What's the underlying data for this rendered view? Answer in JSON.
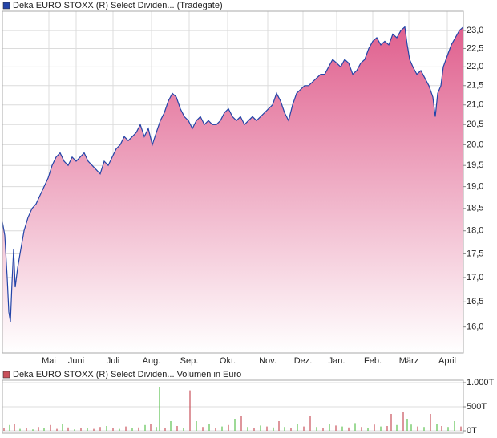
{
  "chart_data": [
    {
      "type": "area",
      "log_scale": true,
      "grid": true,
      "series": [
        {
          "name": "Deka EURO STOXX (R) Select Dividen... (Tradegate)",
          "color": "#2344a8",
          "fill": "#e0608e",
          "x": [
            0,
            3,
            6,
            8,
            10,
            12,
            14,
            16,
            19,
            22,
            27,
            32,
            37,
            42,
            47,
            52,
            57,
            62,
            67,
            72,
            77,
            82,
            87,
            92,
            97,
            102,
            107,
            112,
            117,
            122,
            127,
            132,
            137,
            142,
            147,
            152,
            157,
            162,
            167,
            172,
            177,
            182,
            187,
            192,
            197,
            202,
            207,
            212,
            217,
            222,
            227,
            232,
            237,
            242,
            247,
            252,
            257,
            262,
            267,
            272,
            277,
            282,
            287,
            292,
            297,
            302,
            307,
            312,
            317,
            322,
            327,
            332,
            337,
            342,
            347,
            352,
            357,
            362,
            367,
            372,
            377,
            382,
            387,
            392,
            397,
            402,
            407,
            412,
            417,
            422,
            427,
            432,
            437,
            442,
            447,
            452,
            457,
            462,
            467,
            472,
            477,
            482,
            487,
            492,
            497,
            502,
            505,
            508,
            512,
            517,
            522,
            527,
            532,
            537,
            540,
            543,
            547,
            550,
            555,
            560,
            565,
            570,
            575
          ],
          "values": [
            18.2,
            17.9,
            17.0,
            16.3,
            16.1,
            16.9,
            17.6,
            16.8,
            17.2,
            17.5,
            18.0,
            18.3,
            18.5,
            18.6,
            18.8,
            19.0,
            19.2,
            19.5,
            19.7,
            19.8,
            19.6,
            19.5,
            19.7,
            19.6,
            19.7,
            19.8,
            19.6,
            19.5,
            19.4,
            19.3,
            19.6,
            19.5,
            19.7,
            19.9,
            20.0,
            20.2,
            20.1,
            20.2,
            20.3,
            20.5,
            20.2,
            20.4,
            20.0,
            20.3,
            20.6,
            20.8,
            21.1,
            21.3,
            21.2,
            20.9,
            20.7,
            20.6,
            20.4,
            20.6,
            20.7,
            20.5,
            20.6,
            20.5,
            20.5,
            20.6,
            20.8,
            20.9,
            20.7,
            20.6,
            20.7,
            20.5,
            20.6,
            20.7,
            20.6,
            20.7,
            20.8,
            20.9,
            21.0,
            21.3,
            21.1,
            20.8,
            20.6,
            21.0,
            21.3,
            21.4,
            21.5,
            21.5,
            21.6,
            21.7,
            21.8,
            21.8,
            22.0,
            22.2,
            22.1,
            22.0,
            22.2,
            22.1,
            21.8,
            21.9,
            22.1,
            22.2,
            22.5,
            22.7,
            22.8,
            22.6,
            22.7,
            22.6,
            22.9,
            22.8,
            23.0,
            23.1,
            22.6,
            22.2,
            22.0,
            21.8,
            21.9,
            21.7,
            21.5,
            21.2,
            20.7,
            21.3,
            21.5,
            22.0,
            22.3,
            22.6,
            22.8,
            23.0,
            23.1
          ]
        }
      ],
      "xlim": [
        0,
        575
      ],
      "xticks": [
        {
          "value": 58,
          "label": "Mai"
        },
        {
          "value": 92,
          "label": "Juni"
        },
        {
          "value": 138,
          "label": "Juli"
        },
        {
          "value": 186,
          "label": "Aug."
        },
        {
          "value": 233,
          "label": "Sep."
        },
        {
          "value": 281,
          "label": "Okt."
        },
        {
          "value": 331,
          "label": "Nov."
        },
        {
          "value": 375,
          "label": "Dez."
        },
        {
          "value": 417,
          "label": "Jan."
        },
        {
          "value": 462,
          "label": "Feb."
        },
        {
          "value": 507,
          "label": "März"
        },
        {
          "value": 555,
          "label": "April"
        }
      ],
      "ylim": [
        15.5,
        23.55
      ],
      "yticks": [
        {
          "value": 16,
          "label": "16,0"
        },
        {
          "value": 16.5,
          "label": "16,5"
        },
        {
          "value": 17,
          "label": "17,0"
        },
        {
          "value": 17.5,
          "label": "17,5"
        },
        {
          "value": 18,
          "label": "18,0"
        },
        {
          "value": 18.5,
          "label": "18,5"
        },
        {
          "value": 19,
          "label": "19,0"
        },
        {
          "value": 19.5,
          "label": "19,5"
        },
        {
          "value": 20,
          "label": "20,0"
        },
        {
          "value": 20.5,
          "label": "20,5"
        },
        {
          "value": 21,
          "label": "21,0"
        },
        {
          "value": 21.5,
          "label": "21,5"
        },
        {
          "value": 22,
          "label": "22,0"
        },
        {
          "value": 22.5,
          "label": "22,5"
        },
        {
          "value": 23,
          "label": "23,0"
        }
      ]
    },
    {
      "type": "bar",
      "grid": true,
      "series": [
        {
          "name": "Deka EURO STOXX (R) Select Dividen... Volumen in Euro",
          "color": "#c8505a",
          "x": [
            2,
            9,
            15,
            22,
            30,
            38,
            45,
            52,
            60,
            68,
            75,
            82,
            90,
            98,
            106,
            114,
            122,
            130,
            138,
            146,
            154,
            162,
            170,
            178,
            185,
            192,
            196,
            203,
            210,
            218,
            226,
            234,
            242,
            250,
            258,
            266,
            274,
            282,
            290,
            298,
            306,
            314,
            322,
            330,
            338,
            345,
            352,
            360,
            368,
            376,
            384,
            392,
            400,
            408,
            416,
            424,
            432,
            440,
            448,
            456,
            464,
            472,
            480,
            485,
            492,
            500,
            505,
            510,
            518,
            526,
            534,
            542,
            548,
            556,
            564,
            572
          ],
          "values": [
            60,
            120,
            150,
            40,
            50,
            30,
            80,
            60,
            120,
            40,
            140,
            70,
            30,
            60,
            50,
            40,
            80,
            100,
            60,
            40,
            90,
            50,
            70,
            120,
            150,
            80,
            900,
            60,
            200,
            100,
            60,
            840,
            200,
            80,
            150,
            60,
            90,
            120,
            250,
            300,
            80,
            60,
            110,
            90,
            70,
            200,
            80,
            60,
            140,
            90,
            300,
            80,
            60,
            150,
            110,
            90,
            70,
            160,
            80,
            60,
            130,
            90,
            100,
            350,
            120,
            400,
            250,
            130,
            90,
            80,
            350,
            150,
            100,
            80,
            200,
            90
          ],
          "colors": [
            "#c8505a",
            "#5cc050",
            "#c8505a",
            "#5cc050",
            "#c8505a",
            "#5cc050",
            "#c8505a",
            "#5cc050",
            "#c8505a",
            "#c8505a",
            "#5cc050",
            "#c8505a",
            "#5cc050",
            "#c8505a",
            "#5cc050",
            "#c8505a",
            "#c8505a",
            "#5cc050",
            "#c8505a",
            "#5cc050",
            "#c8505a",
            "#5cc050",
            "#c8505a",
            "#5cc050",
            "#c8505a",
            "#5cc050",
            "#5cc050",
            "#c8505a",
            "#5cc050",
            "#c8505a",
            "#5cc050",
            "#c8505a",
            "#5cc050",
            "#c8505a",
            "#5cc050",
            "#c8505a",
            "#5cc050",
            "#c8505a",
            "#5cc050",
            "#c8505a",
            "#5cc050",
            "#c8505a",
            "#5cc050",
            "#c8505a",
            "#5cc050",
            "#c8505a",
            "#5cc050",
            "#c8505a",
            "#5cc050",
            "#c8505a",
            "#c8505a",
            "#5cc050",
            "#c8505a",
            "#5cc050",
            "#c8505a",
            "#5cc050",
            "#c8505a",
            "#5cc050",
            "#c8505a",
            "#5cc050",
            "#c8505a",
            "#5cc050",
            "#c8505a",
            "#c8505a",
            "#5cc050",
            "#c8505a",
            "#5cc050",
            "#5cc050",
            "#c8505a",
            "#5cc050",
            "#c8505a",
            "#5cc050",
            "#c8505a",
            "#5cc050",
            "#5cc050",
            "#c8505a"
          ]
        }
      ],
      "xlim": [
        0,
        575
      ],
      "ylim": [
        -50,
        1050
      ],
      "yticks": [
        {
          "value": 0,
          "label": "0T"
        },
        {
          "value": 500,
          "label": "500T"
        },
        {
          "value": 1000,
          "label": "1.000T"
        }
      ]
    }
  ]
}
